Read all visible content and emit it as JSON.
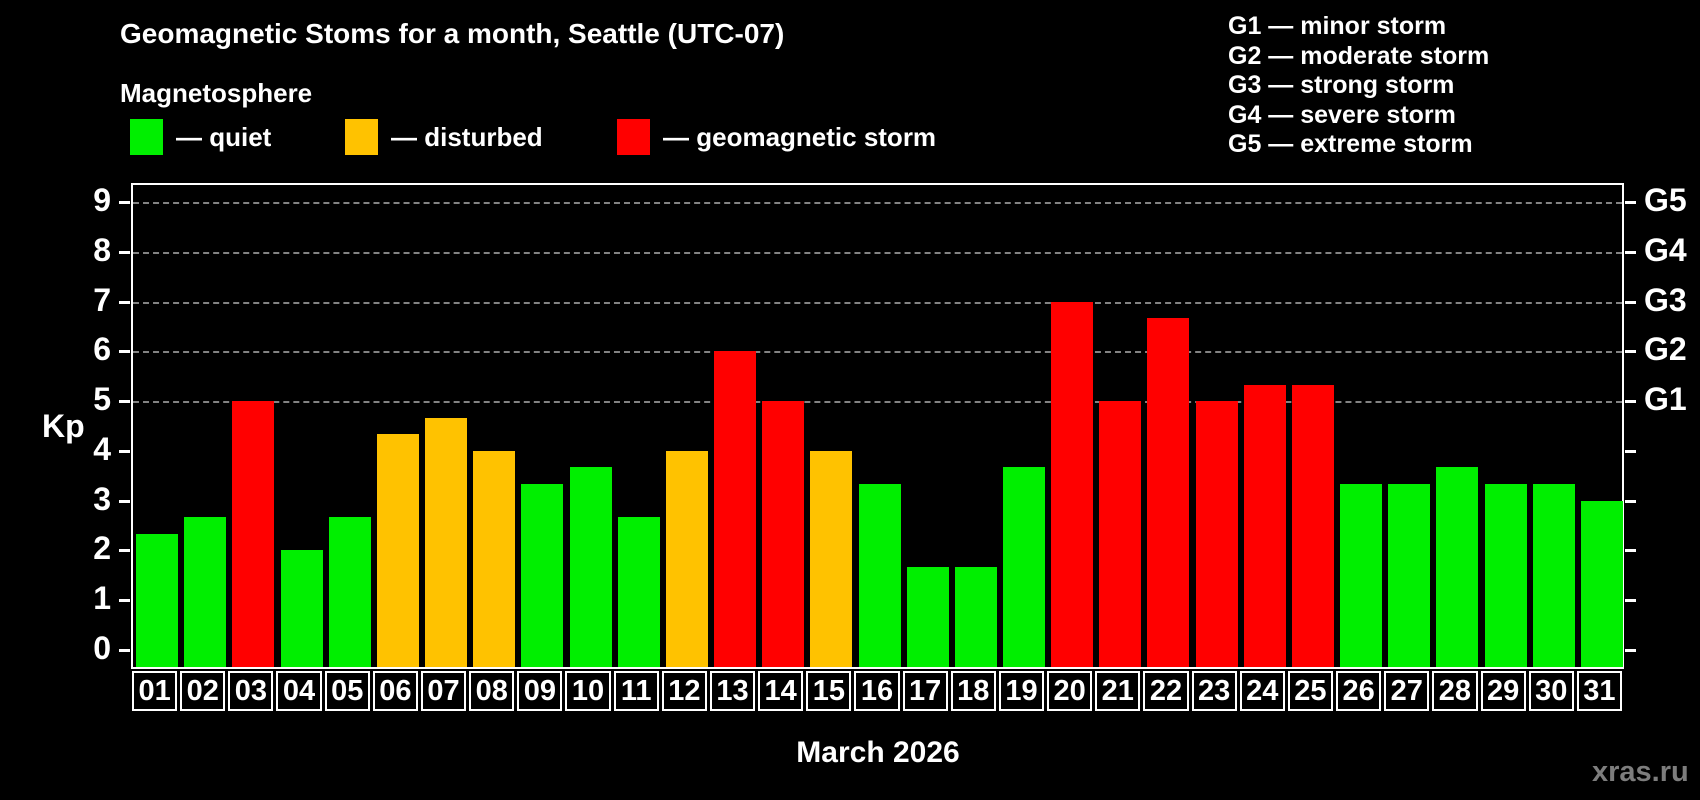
{
  "title": "Geomagnetic Stoms for a month, Seattle (UTC-07)",
  "subtitle": "Magnetosphere",
  "legend": [
    {
      "key": "quiet",
      "label": "— quiet",
      "color": "#00ef00"
    },
    {
      "key": "disturbed",
      "label": "— disturbed",
      "color": "#ffc200"
    },
    {
      "key": "storm",
      "label": "— geomagnetic storm",
      "color": "#ff0000"
    }
  ],
  "g_scale_legend": [
    "G1 — minor storm",
    "G2 — moderate storm",
    "G3 — strong storm",
    "G4 — severe storm",
    "G5 — extreme storm"
  ],
  "y_axis_label": "Kp",
  "x_axis_title": "March 2026",
  "watermark": "xras.ru",
  "colors": {
    "background": "#000000",
    "axis": "#ffffff",
    "gridline": "#9a9a9a",
    "quiet": "#00ef00",
    "disturbed": "#ffc200",
    "storm": "#ff0000",
    "watermark": "#7d7d7d"
  },
  "chart_data": {
    "type": "bar",
    "title": "Geomagnetic Stoms for a month, Seattle (UTC-07)",
    "xlabel": "March 2026",
    "ylabel": "Kp",
    "ylim": [
      0,
      9
    ],
    "y_ticks": [
      0,
      1,
      2,
      3,
      4,
      5,
      6,
      7,
      8,
      9
    ],
    "grid": "horizontal dashed lines at Kp 5,6,7,8,9 only (G storm levels)",
    "legend_position": "top-left",
    "right_axis_labels": [
      {
        "kp": 5,
        "label": "G1"
      },
      {
        "kp": 6,
        "label": "G2"
      },
      {
        "kp": 7,
        "label": "G3"
      },
      {
        "kp": 8,
        "label": "G4"
      },
      {
        "kp": 9,
        "label": "G5"
      }
    ],
    "categories": [
      "01",
      "02",
      "03",
      "04",
      "05",
      "06",
      "07",
      "08",
      "09",
      "10",
      "11",
      "12",
      "13",
      "14",
      "15",
      "16",
      "17",
      "18",
      "19",
      "20",
      "21",
      "22",
      "23",
      "24",
      "25",
      "26",
      "27",
      "28",
      "29",
      "30",
      "31"
    ],
    "series": [
      {
        "name": "Kp index",
        "values": [
          2.33,
          2.67,
          5,
          2,
          2.67,
          4.33,
          4.67,
          4,
          3.33,
          3.67,
          2.67,
          4,
          6,
          5,
          4,
          3.33,
          1.67,
          1.67,
          3.67,
          7,
          5,
          6.67,
          5,
          5.33,
          5.33,
          3.33,
          3.33,
          3.67,
          3.33,
          3.33,
          3
        ]
      }
    ],
    "statuses": [
      "quiet",
      "quiet",
      "storm",
      "quiet",
      "quiet",
      "disturbed",
      "disturbed",
      "disturbed",
      "quiet",
      "quiet",
      "quiet",
      "disturbed",
      "storm",
      "storm",
      "disturbed",
      "quiet",
      "quiet",
      "quiet",
      "quiet",
      "storm",
      "storm",
      "storm",
      "storm",
      "storm",
      "storm",
      "quiet",
      "quiet",
      "quiet",
      "quiet",
      "quiet",
      "quiet"
    ]
  }
}
